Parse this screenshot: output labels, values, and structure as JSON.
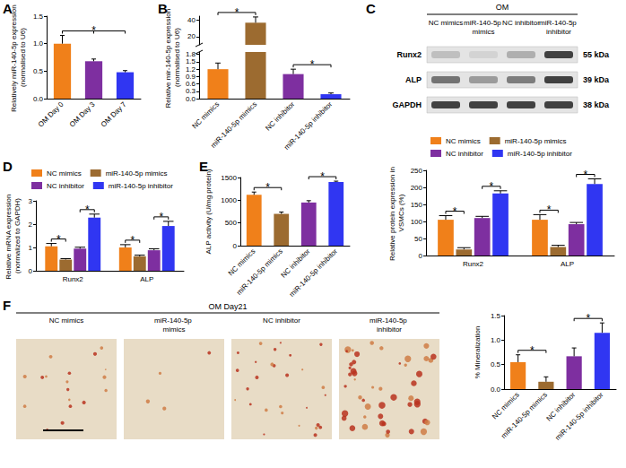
{
  "chart_data": [
    {
      "panel": "A",
      "type": "bar",
      "y_label": "Relatively miR-140-5p expression (normalised to U6)",
      "categories": [
        "OM Day 0",
        "OM Day 3",
        "OM Day 7"
      ],
      "values": [
        1.0,
        0.68,
        0.48
      ],
      "errors": [
        0.15,
        0.04,
        0.03
      ],
      "colors": [
        "#f0801a",
        "#7e2fa0",
        "#3036f2"
      ],
      "ylim": [
        0,
        1.5
      ],
      "yticks": [
        {
          "value": 0,
          "label": "0.0"
        },
        0.5,
        {
          "value": 1,
          "label": "1.0"
        },
        1.5
      ],
      "grid": false,
      "annotations": [
        {
          "between": [
            "OM Day 0",
            "OM Day 3",
            "OM Day 7"
          ],
          "text": "*"
        }
      ]
    },
    {
      "panel": "B",
      "type": "bar",
      "y_label": "Relative mir-140-5p expression (normalised to U6)",
      "categories": [
        "NC mimics",
        "miR-140-5p mimics",
        "NC inhibitor",
        "miR-140-5p inhibitor"
      ],
      "values": [
        1.2,
        37,
        1.0,
        0.18
      ],
      "errors": [
        0.25,
        7,
        0.2,
        0.05
      ],
      "colors": [
        "#f0801a",
        "#9c6b30",
        "#7e2fa0",
        "#3036f2"
      ],
      "ylim": [
        0,
        45
      ],
      "y_break": [
        1.9,
        10
      ],
      "yticks": [
        {
          "value": 0,
          "label": "0.0"
        },
        0.3,
        0.6,
        0.9,
        1.2,
        1.5,
        1.8,
        20,
        40
      ],
      "grid": false,
      "annotations": [
        {
          "between": [
            "NC mimics",
            "miR-140-5p mimics"
          ],
          "text": "*"
        },
        {
          "between": [
            "NC inhibitor",
            "miR-140-5p inhibitor"
          ],
          "text": "*"
        }
      ]
    },
    {
      "type": "bar",
      "y_label": "Relative protein expression in VSMCs (%)",
      "categories": [
        "Runx2",
        "ALP"
      ],
      "series": [
        {
          "name": "NC mimics",
          "color": "#f0801a",
          "values": [
            105,
            105
          ],
          "errors": [
            12,
            15
          ]
        },
        {
          "name": "miR-140-5p mimics",
          "color": "#9c6b30",
          "values": [
            18,
            25
          ],
          "errors": [
            5,
            5
          ]
        },
        {
          "name": "NC inhibitor",
          "color": "#7e2fa0",
          "values": [
            110,
            92
          ],
          "errors": [
            5,
            5
          ]
        },
        {
          "name": "miR-140-5p inhibitor",
          "color": "#3036f2",
          "values": [
            182,
            210
          ],
          "errors": [
            8,
            15
          ]
        }
      ],
      "ylim": [
        0,
        250
      ],
      "yticks": [
        0,
        50,
        100,
        150,
        200,
        250
      ],
      "grid": false,
      "legend": "top",
      "annotations": [
        {
          "category": "Runx2",
          "between": [
            "NC mimics",
            "miR-140-5p mimics"
          ],
          "text": "*"
        },
        {
          "category": "Runx2",
          "between": [
            "NC inhibitor",
            "miR-140-5p inhibitor"
          ],
          "text": "*"
        },
        {
          "category": "ALP",
          "between": [
            "NC mimics",
            "miR-140-5p mimics"
          ],
          "text": "*"
        },
        {
          "category": "ALP",
          "between": [
            "NC inhibitor",
            "miR-140-5p inhibitor"
          ],
          "text": "*"
        }
      ]
    },
    {
      "panel": "D",
      "type": "bar",
      "y_label": "Relative mRNA expression (normalized to GAPDH)",
      "categories": [
        "Runx2",
        "ALP"
      ],
      "series": [
        {
          "name": "NC mimics",
          "color": "#f0801a",
          "values": [
            1.05,
            1.0
          ],
          "errors": [
            0.12,
            0.12
          ]
        },
        {
          "name": "miR-140-5p mimics",
          "color": "#9c6b30",
          "values": [
            0.48,
            0.62
          ],
          "errors": [
            0.04,
            0.05
          ]
        },
        {
          "name": "NC inhibitor",
          "color": "#7e2fa0",
          "values": [
            0.95,
            0.88
          ],
          "errors": [
            0.06,
            0.06
          ]
        },
        {
          "name": "miR-140-5p inhibitor",
          "color": "#3036f2",
          "values": [
            2.28,
            1.92
          ],
          "errors": [
            0.15,
            0.2
          ]
        }
      ],
      "ylim": [
        0,
        3
      ],
      "yticks": [
        0,
        1,
        2,
        3
      ],
      "grid": false,
      "legend": "top",
      "annotations": [
        {
          "category": "Runx2",
          "between": [
            "NC mimics",
            "miR-140-5p mimics"
          ],
          "text": "*"
        },
        {
          "category": "Runx2",
          "between": [
            "NC inhibitor",
            "miR-140-5p inhibitor"
          ],
          "text": "*"
        },
        {
          "category": "ALP",
          "between": [
            "NC mimics",
            "miR-140-5p mimics"
          ],
          "text": "*"
        },
        {
          "category": "ALP",
          "between": [
            "NC inhibitor",
            "miR-140-5p inhibitor"
          ],
          "text": "*"
        }
      ]
    },
    {
      "panel": "E",
      "type": "bar",
      "y_label": "ALP activity (U/mg protein)",
      "categories": [
        "NC mimics",
        "miR-140-5p mimics",
        "NC inhibitor",
        "miR-140-5p inhibitor"
      ],
      "values": [
        1120,
        700,
        950,
        1400
      ],
      "errors": [
        60,
        40,
        40,
        20
      ],
      "colors": [
        "#f0801a",
        "#9c6b30",
        "#7e2fa0",
        "#3036f2"
      ],
      "ylim": [
        0,
        1500
      ],
      "yticks": [
        0,
        500,
        1000,
        1500
      ],
      "grid": false,
      "annotations": [
        {
          "between": [
            "NC mimics",
            "miR-140-5p mimics"
          ],
          "text": "*"
        },
        {
          "between": [
            "NC inhibitor",
            "miR-140-5p inhibitor"
          ],
          "text": "*"
        }
      ]
    },
    {
      "type": "bar",
      "y_label": "% Mineralization",
      "categories": [
        "NC mimics",
        "miR-140-5p mimics",
        "NC inhibitor",
        "miR-140-5p inhibitor"
      ],
      "values": [
        0.55,
        0.15,
        0.67,
        1.15
      ],
      "errors": [
        0.15,
        0.1,
        0.17,
        0.2
      ],
      "colors": [
        "#f0801a",
        "#9c6b30",
        "#7e2fa0",
        "#3036f2"
      ],
      "ylim": [
        0,
        1.5
      ],
      "yticks": [
        {
          "value": 0,
          "label": "0.0"
        },
        0.5,
        {
          "value": 1,
          "label": "1.0"
        },
        1.5
      ],
      "grid": false,
      "annotations": [
        {
          "between": [
            "NC mimics",
            "miR-140-5p mimics"
          ],
          "text": "*"
        },
        {
          "between": [
            "NC inhibitor",
            "miR-140-5p inhibitor"
          ],
          "text": "*"
        }
      ]
    }
  ],
  "western_blot": {
    "panel": "C",
    "header": "OM",
    "lanes": [
      "NC mimics",
      "miR-140-5p mimics",
      "NC inhibitor",
      "miR-140-5p inhibitor"
    ],
    "rows": [
      {
        "label": "Runx2",
        "size": "55 kDa"
      },
      {
        "label": "ALP",
        "size": "39 kDa"
      },
      {
        "label": "GAPDH",
        "size": "38 kDa"
      }
    ]
  },
  "micrographs": {
    "panel": "F",
    "header": "OM Day21",
    "columns": [
      "NC mimics",
      "miR-140-5p mimics",
      "NC inhibitor",
      "miR-140-5p inhibitor"
    ]
  }
}
